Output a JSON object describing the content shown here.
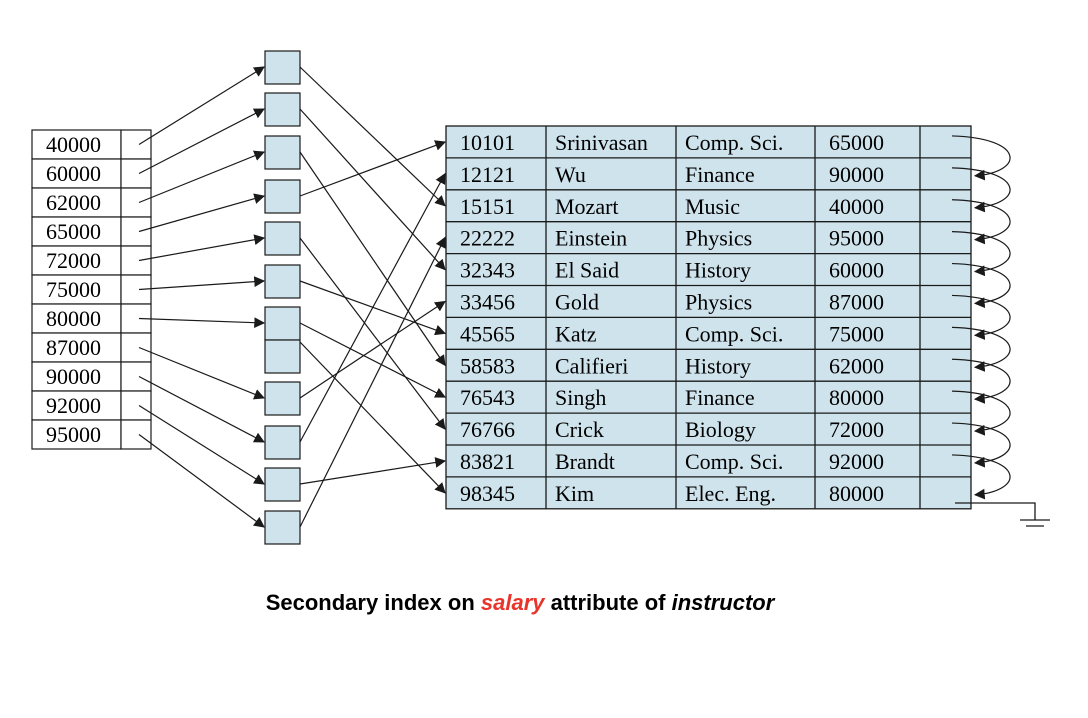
{
  "index_keys": [
    "40000",
    "60000",
    "62000",
    "65000",
    "72000",
    "75000",
    "80000",
    "87000",
    "90000",
    "92000",
    "95000"
  ],
  "table": {
    "rows": [
      {
        "id": "10101",
        "name": "Srinivasan",
        "dept": "Comp. Sci.",
        "salary": "65000"
      },
      {
        "id": "12121",
        "name": "Wu",
        "dept": "Finance",
        "salary": "90000"
      },
      {
        "id": "15151",
        "name": "Mozart",
        "dept": "Music",
        "salary": "40000"
      },
      {
        "id": "22222",
        "name": "Einstein",
        "dept": "Physics",
        "salary": "95000"
      },
      {
        "id": "32343",
        "name": "El Said",
        "dept": "History",
        "salary": "60000"
      },
      {
        "id": "33456",
        "name": "Gold",
        "dept": "Physics",
        "salary": "87000"
      },
      {
        "id": "45565",
        "name": "Katz",
        "dept": "Comp. Sci.",
        "salary": "75000"
      },
      {
        "id": "58583",
        "name": "Califieri",
        "dept": "History",
        "salary": "62000"
      },
      {
        "id": "76543",
        "name": "Singh",
        "dept": "Finance",
        "salary": "80000"
      },
      {
        "id": "76766",
        "name": "Crick",
        "dept": "Biology",
        "salary": "72000"
      },
      {
        "id": "83821",
        "name": "Brandt",
        "dept": "Comp. Sci.",
        "salary": "92000"
      },
      {
        "id": "98345",
        "name": "Kim",
        "dept": "Elec. Eng.",
        "salary": "80000"
      }
    ]
  },
  "caption": {
    "prefix": "Secondary index on ",
    "highlight": "salary",
    "middle": " attribute of ",
    "emphasis": "instructor"
  },
  "colors": {
    "cell_fill": "#cfe3ec",
    "line": "#1a1a1a",
    "highlight": "#e8342a"
  }
}
